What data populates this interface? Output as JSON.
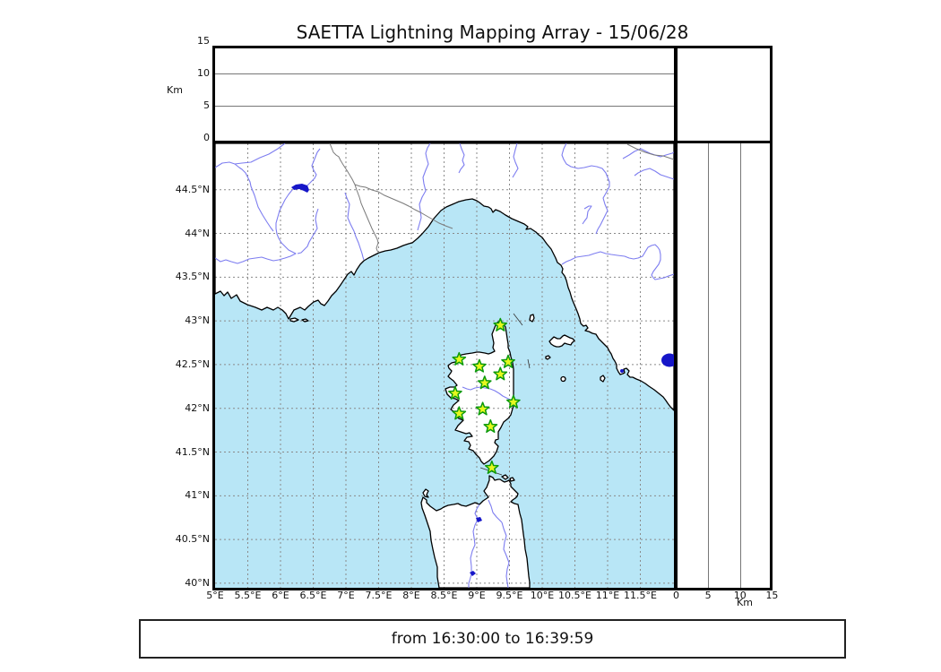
{
  "title": "SAETTA Lightning Mapping Array - 15/06/28",
  "footer": {
    "time_range": "from 16:30:00 to 16:39:59"
  },
  "altitude_axis": {
    "unit_label": "Km",
    "ticks": [
      {
        "label": "0",
        "km": 0
      },
      {
        "label": "5",
        "km": 5
      },
      {
        "label": "10",
        "km": 10
      },
      {
        "label": "15",
        "km": 15
      }
    ],
    "range_km": [
      0,
      15
    ],
    "gridlines_km": [
      5,
      10
    ]
  },
  "map": {
    "lat_ticks": [
      {
        "label": "44.5°N",
        "deg": 44.5
      },
      {
        "label": "44°N",
        "deg": 44.0
      },
      {
        "label": "43.5°N",
        "deg": 43.5
      },
      {
        "label": "43°N",
        "deg": 43.0
      },
      {
        "label": "42.5°N",
        "deg": 42.5
      },
      {
        "label": "42°N",
        "deg": 42.0
      },
      {
        "label": "41.5°N",
        "deg": 41.5
      },
      {
        "label": "41°N",
        "deg": 41.0
      },
      {
        "label": "40.5°N",
        "deg": 40.5
      },
      {
        "label": "40°N",
        "deg": 40.0
      }
    ],
    "lon_ticks": [
      {
        "label": "5°E",
        "deg": 5.0
      },
      {
        "label": "5.5°E",
        "deg": 5.5
      },
      {
        "label": "6°E",
        "deg": 6.0
      },
      {
        "label": "6.5°E",
        "deg": 6.5
      },
      {
        "label": "7°E",
        "deg": 7.0
      },
      {
        "label": "7.5°E",
        "deg": 7.5
      },
      {
        "label": "8°E",
        "deg": 8.0
      },
      {
        "label": "8.5°E",
        "deg": 8.5
      },
      {
        "label": "9°E",
        "deg": 9.0
      },
      {
        "label": "9.5°E",
        "deg": 9.5
      },
      {
        "label": "10°E",
        "deg": 10.0
      },
      {
        "label": "10.5°E",
        "deg": 10.5
      },
      {
        "label": "11°E",
        "deg": 11.0
      },
      {
        "label": "11.5°E",
        "deg": 11.5
      }
    ],
    "stations": [
      {
        "lon": 9.36,
        "lat": 42.95
      },
      {
        "lon": 8.73,
        "lat": 42.56
      },
      {
        "lon": 9.04,
        "lat": 42.48
      },
      {
        "lon": 9.48,
        "lat": 42.53
      },
      {
        "lon": 9.36,
        "lat": 42.39
      },
      {
        "lon": 9.12,
        "lat": 42.29
      },
      {
        "lon": 8.67,
        "lat": 42.17
      },
      {
        "lon": 9.56,
        "lat": 42.07
      },
      {
        "lon": 9.09,
        "lat": 41.99
      },
      {
        "lon": 8.73,
        "lat": 41.94
      },
      {
        "lon": 9.21,
        "lat": 41.79
      },
      {
        "lon": 9.23,
        "lat": 41.32
      }
    ],
    "colors": {
      "sea": "#b8e6f6",
      "land": "#ffffff",
      "coast": "#000000",
      "river": "#7d7df0",
      "lake": "#1616c8",
      "grid": "#8a8a8a",
      "admin_border": "#7a7a7a",
      "star_fill": "#e6f81e",
      "star_stroke": "#0c9a0c"
    }
  }
}
